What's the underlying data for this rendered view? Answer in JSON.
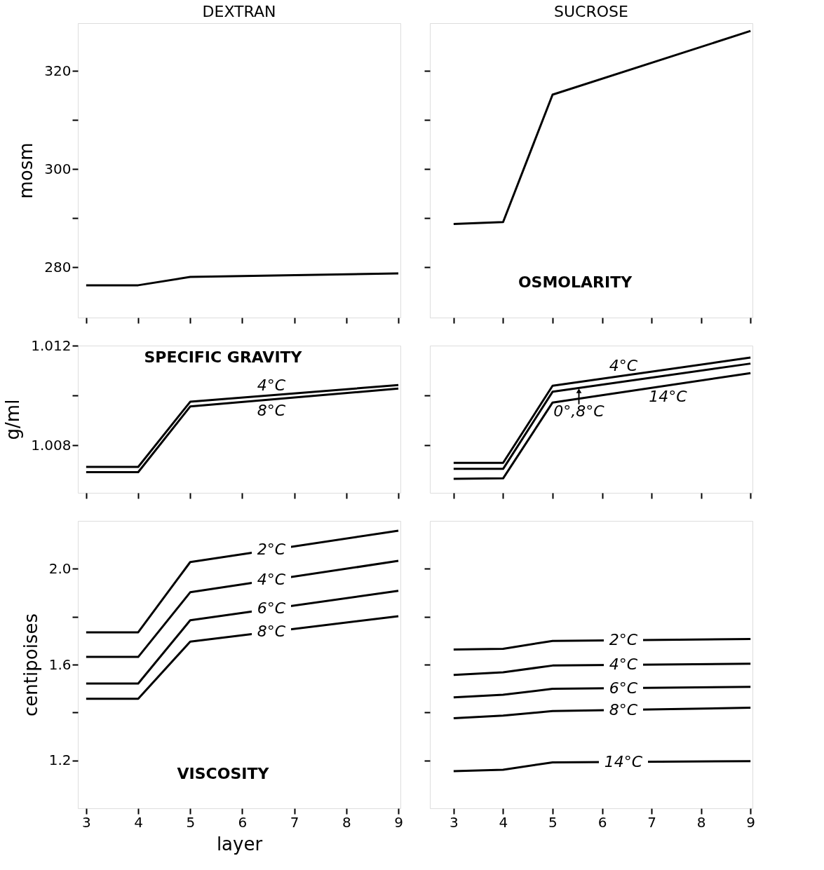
{
  "chart_data": [
    {
      "type": "line",
      "title": "DEXTRAN",
      "ylabel": "mosm",
      "x": [
        3,
        4,
        5,
        9
      ],
      "xlim": [
        2.84,
        9.04
      ],
      "xticks": [
        3,
        4,
        5,
        6,
        7,
        8,
        9
      ],
      "ylim": [
        269.7,
        329.8
      ],
      "yticks": [
        280,
        {
          "value": 290,
          "label": null
        },
        300,
        {
          "value": 310,
          "label": null
        },
        320
      ],
      "tick_labels": "y",
      "grid": false,
      "series": [
        {
          "color": "#000000",
          "values": [
            276.3,
            276.3,
            278.0,
            278.7
          ]
        }
      ]
    },
    {
      "type": "line",
      "title": "SUCROSE",
      "x": [
        3,
        4,
        5,
        9
      ],
      "xlim": [
        2.52,
        9.04
      ],
      "xticks": [
        3,
        4,
        5,
        6,
        7,
        8,
        9
      ],
      "ylim": [
        269.7,
        329.8
      ],
      "yticks": [
        280,
        {
          "value": 290,
          "label": null
        },
        300,
        {
          "value": 310,
          "label": null
        },
        320
      ],
      "tick_labels": false,
      "grid": false,
      "annotations": [
        "OSMOLARITY"
      ],
      "series": [
        {
          "color": "#000000",
          "values": [
            288.8,
            289.2,
            315.2,
            328.2
          ]
        }
      ]
    },
    {
      "type": "line",
      "ylabel": "g/ml",
      "x": [
        3,
        4,
        5,
        9
      ],
      "xlim": [
        2.84,
        9.04
      ],
      "xticks": [
        3,
        4,
        5,
        6,
        7,
        8,
        9
      ],
      "ylim": [
        1.0061,
        1.012
      ],
      "yticks": [
        {
          "value": 1.01,
          "label": null
        },
        1.008,
        1.012
      ],
      "tick_labels": "y",
      "grid": false,
      "annotations": [
        "SPECIFIC GRAVITY"
      ],
      "series": [
        {
          "name": "4°C",
          "color": "#000000",
          "values": [
            1.00714,
            1.00714,
            1.00975,
            1.01042
          ]
        },
        {
          "name": "8°C",
          "color": "#000000",
          "values": [
            1.00693,
            1.00693,
            1.00956,
            1.01028
          ]
        }
      ]
    },
    {
      "type": "line",
      "x": [
        3,
        4,
        5,
        9
      ],
      "xlim": [
        2.52,
        9.04
      ],
      "xticks": [
        3,
        4,
        5,
        6,
        7,
        8,
        9
      ],
      "ylim": [
        1.0061,
        1.012
      ],
      "yticks": [
        {
          "value": 1.01,
          "label": null
        },
        {
          "value": 1.008,
          "label": null
        }
      ],
      "tick_labels": false,
      "grid": false,
      "series": [
        {
          "name": "4°C",
          "color": "#000000",
          "values": [
            1.0073,
            1.0073,
            1.01039,
            1.01152
          ]
        },
        {
          "name": "0°,8°C",
          "color": "#000000",
          "values": [
            1.00706,
            1.00706,
            1.01015,
            1.01128
          ]
        },
        {
          "name": "14°C",
          "color": "#000000",
          "values": [
            1.00666,
            1.00668,
            1.00972,
            1.0109
          ]
        }
      ]
    },
    {
      "type": "line",
      "ylabel": "centipoises",
      "xlabel": "layer",
      "x": [
        3,
        4,
        5,
        9
      ],
      "xlim": [
        2.84,
        9.04
      ],
      "xticks": [
        3,
        4,
        5,
        6,
        7,
        8,
        9
      ],
      "ylim": [
        1.0,
        2.2
      ],
      "yticks": [
        1.2,
        {
          "value": 1.4,
          "label": null
        },
        1.6,
        {
          "value": 1.8,
          "label": null
        },
        {
          "value": 2.0,
          "label": "2.0"
        }
      ],
      "grid": false,
      "annotations": [
        "VISCOSITY"
      ],
      "series": [
        {
          "name": "2°C",
          "color": "#000000",
          "values": [
            1.735,
            1.735,
            2.028,
            2.159
          ]
        },
        {
          "name": "4°C",
          "color": "#000000",
          "values": [
            1.632,
            1.632,
            1.902,
            2.033
          ]
        },
        {
          "name": "6°C",
          "color": "#000000",
          "values": [
            1.521,
            1.521,
            1.785,
            1.908
          ]
        },
        {
          "name": "8°C",
          "color": "#000000",
          "values": [
            1.457,
            1.457,
            1.696,
            1.802
          ]
        }
      ]
    },
    {
      "type": "line",
      "x": [
        3,
        4,
        5,
        9
      ],
      "xlim": [
        2.52,
        9.04
      ],
      "xticks": [
        3,
        4,
        5,
        6,
        7,
        8,
        9
      ],
      "ylim": [
        1.0,
        2.2
      ],
      "yticks": [
        {
          "value": 1.2,
          "label": null
        },
        {
          "value": 1.4,
          "label": null
        },
        {
          "value": 1.6,
          "label": null
        },
        {
          "value": 1.8,
          "label": null
        },
        {
          "value": 2.0,
          "label": null
        }
      ],
      "tick_labels": "x",
      "grid": false,
      "series": [
        {
          "name": "2°C",
          "color": "#000000",
          "values": [
            1.663,
            1.666,
            1.699,
            1.707
          ]
        },
        {
          "name": "4°C",
          "color": "#000000",
          "values": [
            1.557,
            1.568,
            1.596,
            1.604
          ]
        },
        {
          "name": "6°C",
          "color": "#000000",
          "values": [
            1.463,
            1.474,
            1.499,
            1.507
          ]
        },
        {
          "name": "8°C",
          "color": "#000000",
          "values": [
            1.376,
            1.387,
            1.406,
            1.42
          ]
        },
        {
          "name": "14°C",
          "color": "#000000",
          "values": [
            1.155,
            1.161,
            1.192,
            1.197
          ]
        }
      ]
    }
  ]
}
